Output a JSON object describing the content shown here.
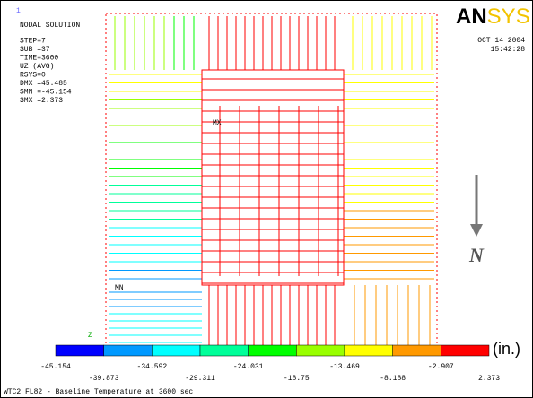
{
  "info": {
    "index": "1",
    "lines": [
      "NODAL SOLUTION",
      "STEP=7",
      "SUB =37",
      "TIME=3600",
      "UZ       (AVG)",
      "RSYS=0",
      "DMX =45.485",
      "SMN =-45.154",
      "SMX =2.373"
    ]
  },
  "logo": {
    "first": "AN",
    "second": "SYS"
  },
  "date": "OCT 14 2004",
  "time": "15:42:28",
  "markers": {
    "max": "MX",
    "min": "MN",
    "axis": "Z"
  },
  "north": "N",
  "legend": {
    "unit": "(in.)",
    "labels": [
      "-45.154",
      "-39.873",
      "-34.592",
      "-29.311",
      "-24.031",
      "-18.75",
      "-13.469",
      "-8.188",
      "-2.907",
      "2.373"
    ],
    "colors": [
      "#0000ff",
      "#0099ff",
      "#00ffff",
      "#00ff99",
      "#00ff00",
      "#99ff00",
      "#ffff00",
      "#ff9900",
      "#ff0000"
    ]
  },
  "footer": "WTC2 FL82 - Baseline Temperature at 3600 sec"
}
